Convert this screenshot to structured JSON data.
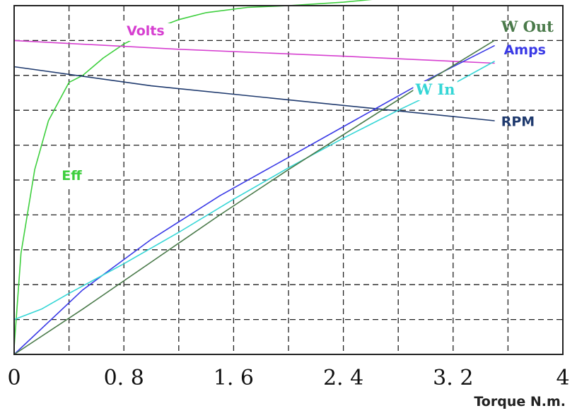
{
  "chart_data": {
    "type": "line",
    "title": "",
    "xlabel": "Torque N.m.",
    "ylabel": "",
    "xlim": [
      0,
      4
    ],
    "ylim": [
      0,
      10
    ],
    "grid": true,
    "legend": "none",
    "x_ticks": [
      {
        "value": 0,
        "label": "0"
      },
      {
        "value": 0.8,
        "label": "0. 8"
      },
      {
        "value": 1.6,
        "label": "1. 6"
      },
      {
        "value": 2.4,
        "label": "2. 4"
      },
      {
        "value": 3.2,
        "label": "3. 2"
      },
      {
        "value": 4,
        "label": "4"
      }
    ],
    "series": [
      {
        "name": "Eff",
        "color": "#3ecf3e",
        "points": [
          [
            0,
            0.2
          ],
          [
            0.05,
            2.9
          ],
          [
            0.15,
            5.3
          ],
          [
            0.25,
            6.7
          ],
          [
            0.4,
            7.8
          ],
          [
            0.5,
            8.0
          ],
          [
            0.65,
            8.5
          ],
          [
            0.8,
            8.9
          ],
          [
            1.0,
            9.3
          ],
          [
            1.2,
            9.6
          ],
          [
            1.4,
            9.8
          ],
          [
            1.7,
            9.95
          ],
          [
            2.0,
            10.0
          ],
          [
            2.4,
            10.1
          ],
          [
            2.8,
            10.25
          ],
          [
            3.2,
            10.25
          ],
          [
            3.5,
            10.25
          ]
        ]
      },
      {
        "name": "Volts",
        "color": "#d63fd0",
        "points": [
          [
            0,
            9.0
          ],
          [
            1.2,
            8.75
          ],
          [
            2.4,
            8.55
          ],
          [
            3.5,
            8.35
          ]
        ]
      },
      {
        "name": "RPM",
        "color": "#1f3a6e",
        "points": [
          [
            0,
            8.25
          ],
          [
            1.0,
            7.7
          ],
          [
            2.0,
            7.3
          ],
          [
            3.0,
            6.9
          ],
          [
            3.5,
            6.7
          ]
        ]
      },
      {
        "name": "Amps",
        "color": "#3a3ae6",
        "points": [
          [
            0,
            0.0
          ],
          [
            0.5,
            1.85
          ],
          [
            1.0,
            3.3
          ],
          [
            1.5,
            4.55
          ],
          [
            2.0,
            5.65
          ],
          [
            2.5,
            6.75
          ],
          [
            3.0,
            7.85
          ],
          [
            3.5,
            8.85
          ]
        ]
      },
      {
        "name": "W In",
        "color": "#35d6d6",
        "points": [
          [
            0,
            1.0
          ],
          [
            0.2,
            1.3
          ],
          [
            0.4,
            1.75
          ],
          [
            0.8,
            2.6
          ],
          [
            1.2,
            3.5
          ],
          [
            1.6,
            4.45
          ],
          [
            2.0,
            5.35
          ],
          [
            2.4,
            6.2
          ],
          [
            2.8,
            7.0
          ],
          [
            3.2,
            7.75
          ],
          [
            3.5,
            8.4
          ]
        ]
      },
      {
        "name": "W Out",
        "color": "#4a7a4a",
        "points": [
          [
            0,
            0.0
          ],
          [
            0.5,
            1.3
          ],
          [
            1.0,
            2.65
          ],
          [
            1.5,
            4.0
          ],
          [
            2.0,
            5.3
          ],
          [
            2.5,
            6.55
          ],
          [
            3.0,
            7.8
          ],
          [
            3.5,
            9.0
          ]
        ]
      }
    ]
  }
}
